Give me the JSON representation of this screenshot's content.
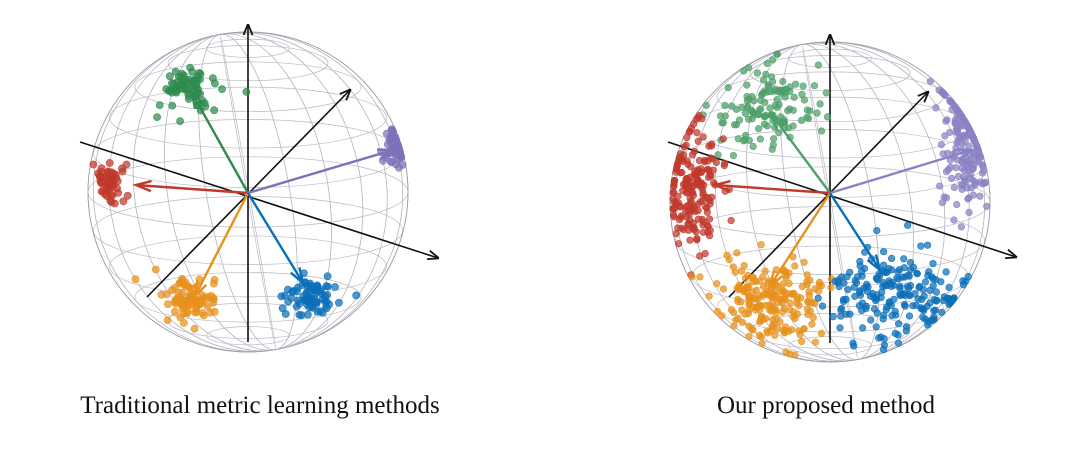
{
  "panels": [
    {
      "id": "left",
      "caption": "Traditional metric learning methods",
      "spread": "tight",
      "clusters": [
        {
          "name": "green",
          "color": "#2e8b4e",
          "point_count": 70
        },
        {
          "name": "red",
          "color": "#c0392b",
          "point_count": 60
        },
        {
          "name": "purple",
          "color": "#7b72b8",
          "point_count": 55
        },
        {
          "name": "orange",
          "color": "#e8901c",
          "point_count": 80
        },
        {
          "name": "blue",
          "color": "#0b6fb8",
          "point_count": 80
        }
      ]
    },
    {
      "id": "right",
      "caption": "Our proposed method",
      "spread": "wide",
      "clusters": [
        {
          "name": "green",
          "color": "#4ea06a",
          "point_count": 130
        },
        {
          "name": "red",
          "color": "#c0392b",
          "point_count": 180
        },
        {
          "name": "purple",
          "color": "#8a82c4",
          "point_count": 170
        },
        {
          "name": "orange",
          "color": "#e8901c",
          "point_count": 200
        },
        {
          "name": "blue",
          "color": "#0b6fb8",
          "point_count": 200
        }
      ]
    }
  ],
  "colors": {
    "axis": "#111111",
    "grid": "#b9b9c4"
  }
}
